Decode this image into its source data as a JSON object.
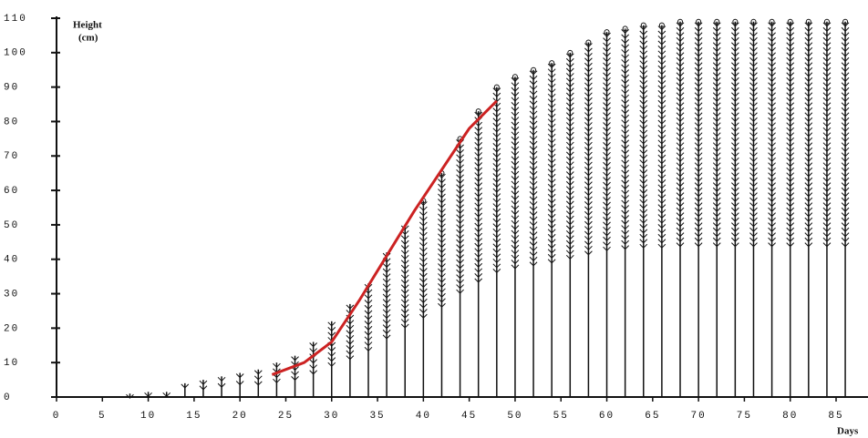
{
  "chart_data": {
    "type": "bar",
    "y_label": [
      "Height",
      "(cm)"
    ],
    "x_label": "Days",
    "xlim": [
      0,
      88
    ],
    "ylim": [
      0,
      110
    ],
    "xticks": [
      0,
      5,
      10,
      15,
      20,
      25,
      30,
      35,
      40,
      45,
      50,
      55,
      60,
      65,
      70,
      75,
      80,
      85
    ],
    "yticks": [
      0,
      10,
      20,
      30,
      40,
      50,
      60,
      70,
      80,
      90,
      100,
      110
    ],
    "series": [
      {
        "type": "bar",
        "color": "#111111",
        "x": [
          8,
          10,
          12,
          14,
          16,
          18,
          20,
          22,
          24,
          26,
          28,
          30,
          32,
          34,
          36,
          38,
          40,
          42,
          44,
          46,
          48,
          50,
          52,
          54,
          56,
          58,
          60,
          62,
          64,
          66,
          68,
          70,
          72,
          74,
          76,
          78,
          80,
          82,
          84,
          86
        ],
        "values": [
          1,
          1.5,
          1.5,
          4,
          5,
          6,
          7,
          8,
          10,
          12,
          16,
          22,
          27,
          33,
          42,
          50,
          57,
          65,
          75,
          83,
          90,
          93,
          95,
          97,
          100,
          103,
          106,
          107,
          108,
          108,
          109,
          109,
          109,
          109,
          109,
          109,
          109,
          109,
          109,
          109
        ]
      },
      {
        "type": "line",
        "color": "#cc2222",
        "x": [
          23.5,
          27,
          30,
          33,
          36,
          39,
          42,
          45,
          48
        ],
        "values": [
          6.5,
          10,
          16,
          28,
          41,
          54,
          66,
          78,
          86
        ]
      }
    ]
  }
}
